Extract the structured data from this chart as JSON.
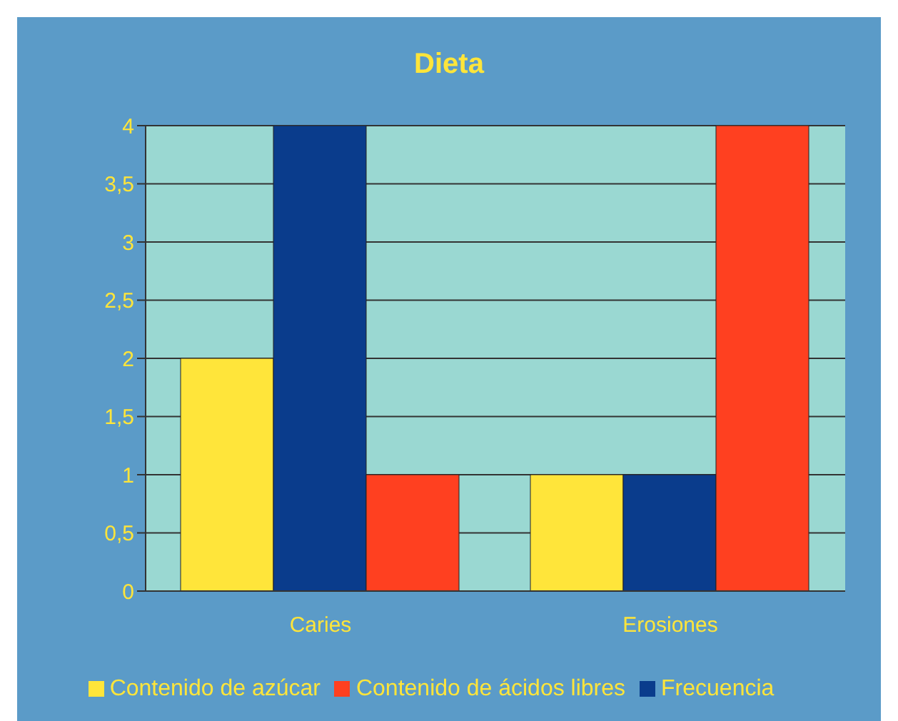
{
  "chart_data": {
    "type": "bar",
    "title": "Dieta",
    "categories": [
      "Caries",
      "Erosiones"
    ],
    "series": [
      {
        "name": "Contenido de azúcar",
        "color": "#ffe53a",
        "values": [
          2,
          1
        ]
      },
      {
        "name": "Frecuencia",
        "color": "#0a3c8c",
        "values": [
          4,
          1
        ]
      },
      {
        "name": "Contenido de ácidos libres",
        "color": "#ff4020",
        "values": [
          1,
          4
        ]
      }
    ],
    "ylim": [
      0,
      4
    ],
    "yticks": [
      0,
      {
        "value": 0.5,
        "label": "0,5"
      },
      1,
      {
        "value": 1.5,
        "label": "1,5"
      },
      2,
      {
        "value": 2.5,
        "label": "2,5"
      },
      3,
      {
        "value": 3.5,
        "label": "3,5"
      },
      4
    ],
    "grid": "y",
    "legend": "bottom"
  }
}
